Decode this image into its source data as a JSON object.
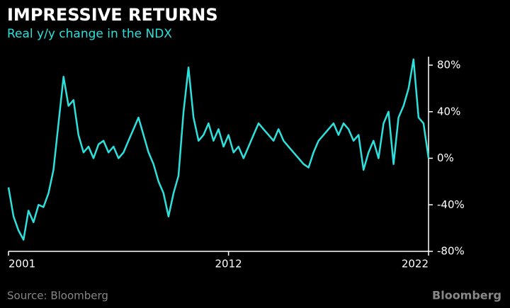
{
  "chart_data": {
    "type": "line",
    "title": "IMPRESSIVE RETURNS",
    "subtitle": "Real y/y change in the NDX",
    "source": "Source: Bloomberg",
    "brand": "Bloomberg",
    "color": "#2de0dc",
    "xlim": [
      2001,
      2022
    ],
    "xticks": [
      2001,
      2012,
      2022
    ],
    "ylim": [
      -80,
      80
    ],
    "yticks": [
      {
        "value": -80,
        "label": "-80%"
      },
      {
        "value": -40,
        "label": "-40%"
      },
      {
        "value": 0,
        "label": "0%"
      },
      {
        "value": 40,
        "label": "40%"
      },
      {
        "value": 80,
        "label": "80%"
      }
    ],
    "x": [
      2001,
      2001.25,
      2001.5,
      2001.75,
      2002,
      2002.25,
      2002.5,
      2002.75,
      2003,
      2003.25,
      2003.5,
      2003.75,
      2004,
      2004.25,
      2004.5,
      2004.75,
      2005,
      2005.25,
      2005.5,
      2005.75,
      2006,
      2006.25,
      2006.5,
      2006.75,
      2007,
      2007.25,
      2007.5,
      2007.75,
      2008,
      2008.25,
      2008.5,
      2008.75,
      2009,
      2009.25,
      2009.5,
      2009.75,
      2010,
      2010.25,
      2010.5,
      2010.75,
      2011,
      2011.25,
      2011.5,
      2011.75,
      2012,
      2012.25,
      2012.5,
      2012.75,
      2013,
      2013.25,
      2013.5,
      2013.75,
      2014,
      2014.25,
      2014.5,
      2014.75,
      2015,
      2015.25,
      2015.5,
      2015.75,
      2016,
      2016.25,
      2016.5,
      2016.75,
      2017,
      2017.25,
      2017.5,
      2017.75,
      2018,
      2018.25,
      2018.5,
      2018.75,
      2019,
      2019.25,
      2019.5,
      2019.75,
      2020,
      2020.25,
      2020.5,
      2020.75,
      2021,
      2021.25,
      2021.5,
      2021.75,
      2022
    ],
    "values": [
      -25,
      -50,
      -62,
      -70,
      -45,
      -55,
      -40,
      -42,
      -30,
      -10,
      30,
      70,
      45,
      50,
      20,
      5,
      10,
      0,
      12,
      15,
      5,
      10,
      0,
      5,
      15,
      25,
      35,
      20,
      5,
      -5,
      -20,
      -30,
      -50,
      -30,
      -15,
      40,
      78,
      35,
      15,
      20,
      30,
      15,
      25,
      10,
      20,
      5,
      10,
      0,
      10,
      20,
      30,
      25,
      20,
      15,
      25,
      15,
      10,
      5,
      0,
      -5,
      -8,
      5,
      15,
      20,
      25,
      30,
      20,
      30,
      25,
      15,
      20,
      -10,
      5,
      15,
      0,
      30,
      40,
      -5,
      35,
      45,
      60,
      85,
      35,
      30,
      0
    ]
  }
}
